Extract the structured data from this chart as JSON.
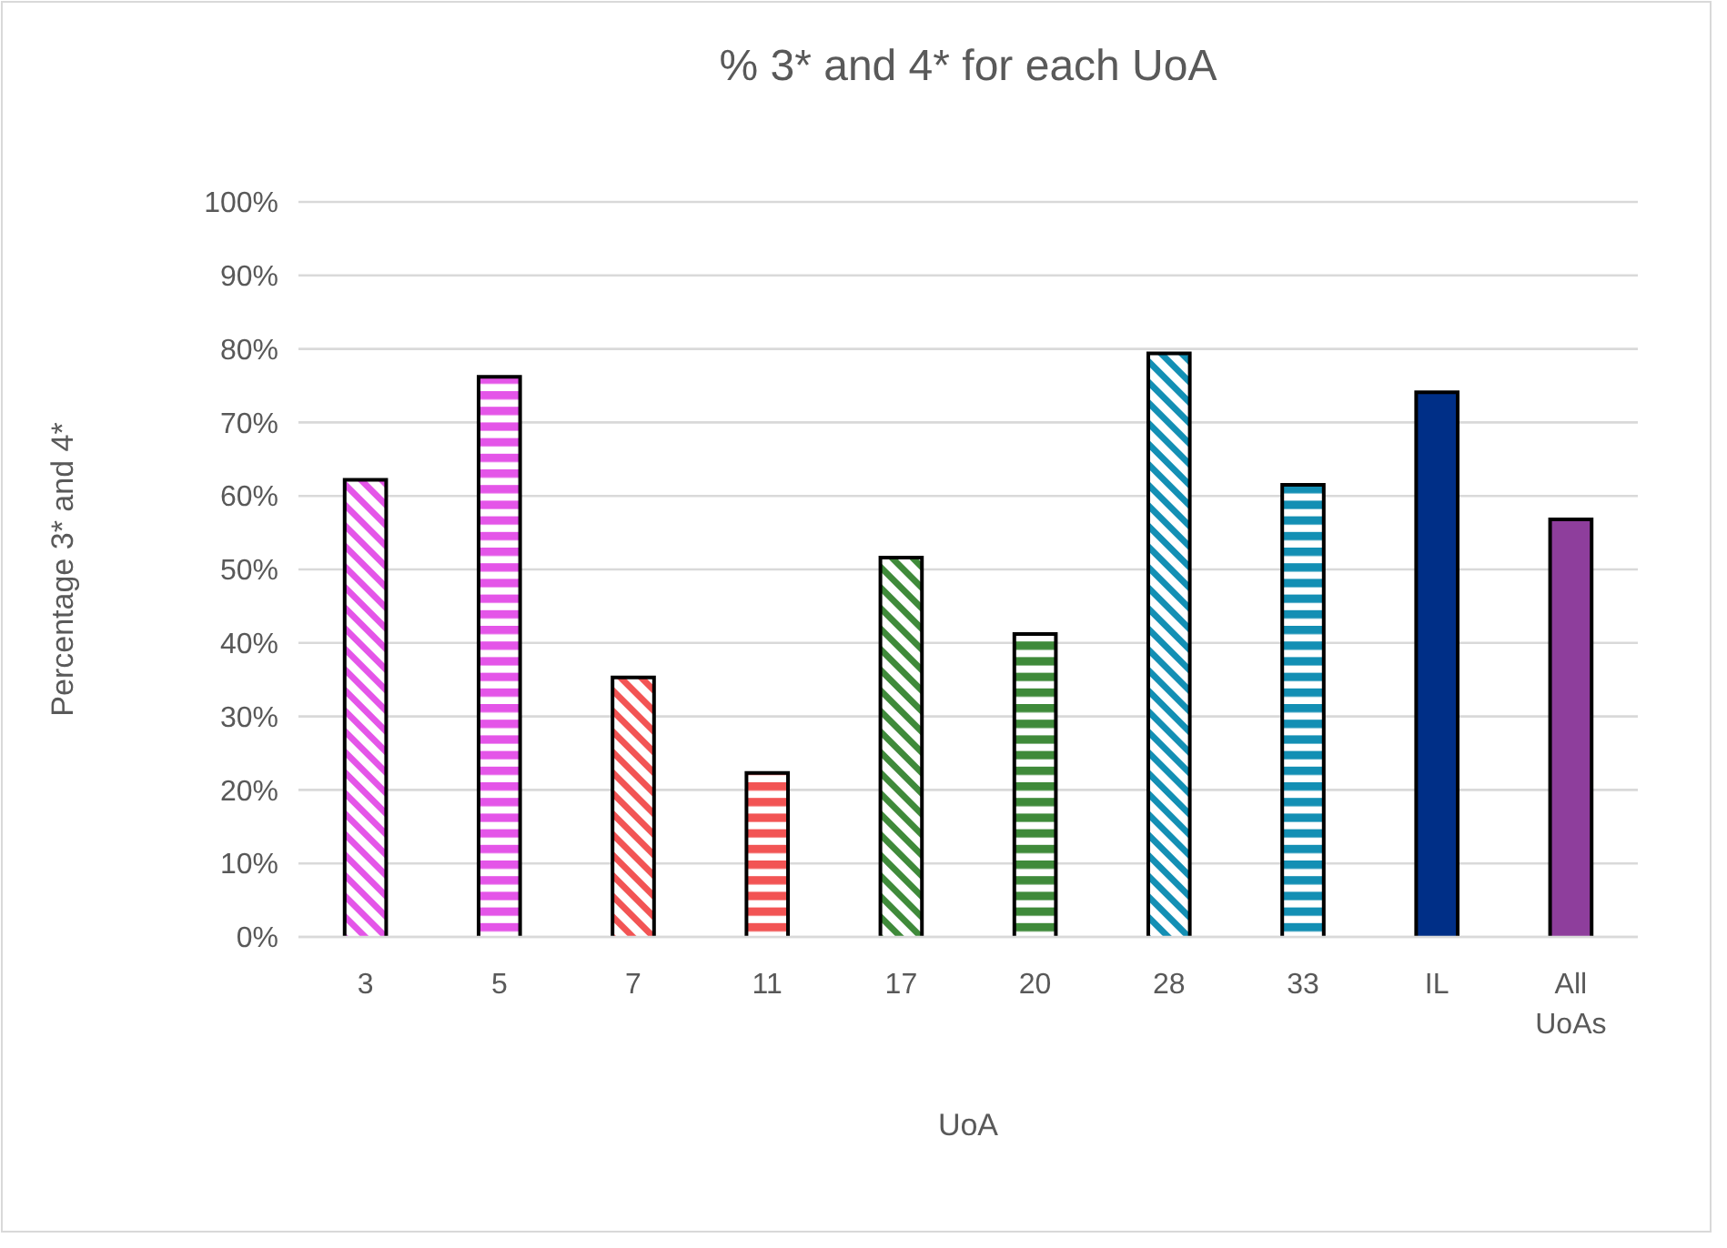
{
  "chart_data": {
    "type": "bar",
    "title": "% 3* and 4* for each UoA",
    "xlabel": "UoA",
    "ylabel": "Percentage 3* and 4*",
    "categories": [
      "3",
      "5",
      "7",
      "11",
      "17",
      "20",
      "28",
      "33",
      "IL",
      "All UoAs"
    ],
    "values": [
      62.2,
      76.2,
      35.3,
      22.3,
      51.6,
      41.2,
      79.4,
      61.5,
      74.1,
      56.8
    ],
    "colors": [
      "#e455e8",
      "#e455e8",
      "#f25454",
      "#f25454",
      "#3f8a3a",
      "#3f8a3a",
      "#138fb4",
      "#138fb4",
      "#002f87",
      "#8e3e9c"
    ],
    "ylim": [
      0,
      100
    ],
    "yticks": [
      {
        "value": 0,
        "label": "0%"
      },
      {
        "value": 10,
        "label": "10%"
      },
      {
        "value": 20,
        "label": "20%"
      },
      {
        "value": 30,
        "label": "30%"
      },
      {
        "value": 40,
        "label": "40%"
      },
      {
        "value": 50,
        "label": "50%"
      },
      {
        "value": 60,
        "label": "60%"
      },
      {
        "value": 70,
        "label": "70%"
      },
      {
        "value": 80,
        "label": "80%"
      },
      {
        "value": 90,
        "label": "90%"
      },
      {
        "value": 100,
        "label": "100%"
      }
    ],
    "grid": "y"
  }
}
